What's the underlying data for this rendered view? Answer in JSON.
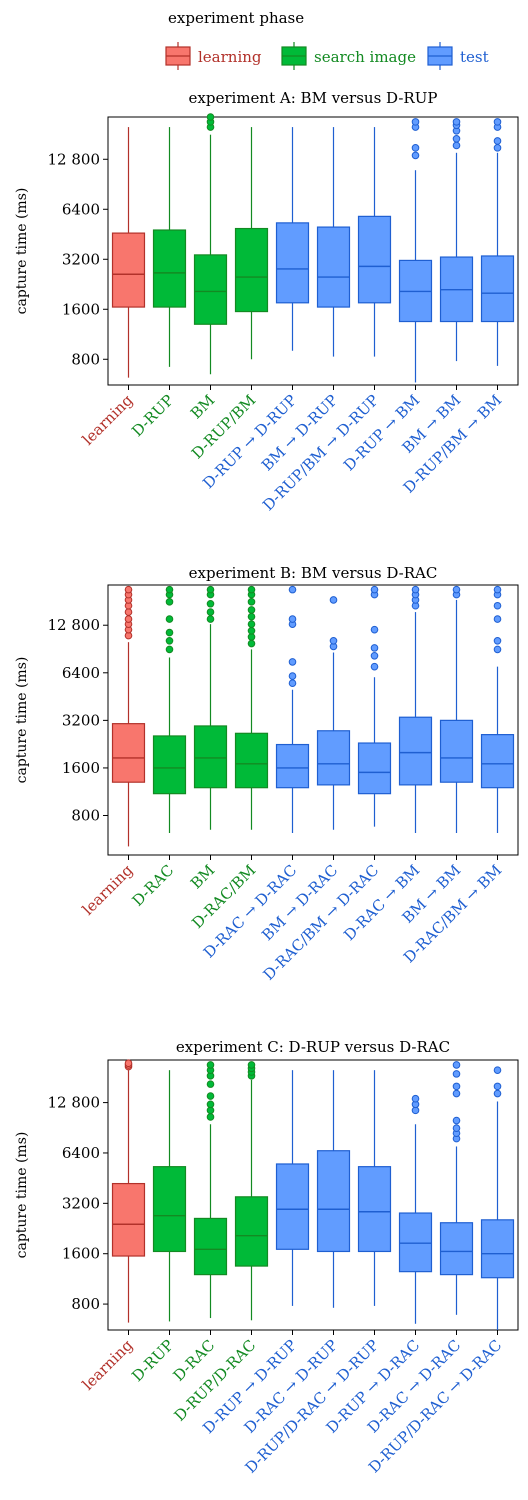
{
  "legend": {
    "title": "experiment phase",
    "items": [
      {
        "label": "learning",
        "fill": "#f8766d",
        "stroke": "#b2312a",
        "text_color": "#b2312a"
      },
      {
        "label": "search image",
        "fill": "#00ba38",
        "stroke": "#138a22",
        "text_color": "#138a22"
      },
      {
        "label": "test",
        "fill": "#619cff",
        "stroke": "#1f5fd1",
        "text_color": "#1f5fd1"
      }
    ]
  },
  "chart_data": [
    {
      "type": "box",
      "title": "experiment A: BM versus D-RUP",
      "ylabel": "capture time (ms)",
      "scale": "log2",
      "ylim": [
        560,
        23000
      ],
      "yticks": [
        800,
        1600,
        3200,
        6400,
        12800
      ],
      "ytick_labels": [
        "800",
        "1600",
        "3200",
        "6400",
        "12 800"
      ],
      "grid": false,
      "boxes": [
        {
          "label": "learning",
          "phase": "learning",
          "whisker_low": 620,
          "q1": 1650,
          "median": 2600,
          "q3": 4600,
          "whisker_high": 20000,
          "outliers": []
        },
        {
          "label": "D-RUP",
          "phase": "search image",
          "whisker_low": 720,
          "q1": 1650,
          "median": 2650,
          "q3": 4800,
          "whisker_high": 20000,
          "outliers": []
        },
        {
          "label": "BM",
          "phase": "search image",
          "whisker_low": 650,
          "q1": 1300,
          "median": 2050,
          "q3": 3400,
          "whisker_high": 18000,
          "outliers": [
            20000,
            21500,
            23000
          ]
        },
        {
          "label": "D-RUP/BM",
          "phase": "search image",
          "whisker_low": 800,
          "q1": 1550,
          "median": 2500,
          "q3": 4900,
          "whisker_high": 20000,
          "outliers": []
        },
        {
          "label": "D-RUP → D-RUP",
          "phase": "test",
          "whisker_low": 900,
          "q1": 1750,
          "median": 2800,
          "q3": 5300,
          "whisker_high": 20000,
          "outliers": []
        },
        {
          "label": "BM → D-RUP",
          "phase": "test",
          "whisker_low": 830,
          "q1": 1650,
          "median": 2500,
          "q3": 5000,
          "whisker_high": 20000,
          "outliers": []
        },
        {
          "label": "D-RUP/BM → D-RUP",
          "phase": "test",
          "whisker_low": 830,
          "q1": 1750,
          "median": 2900,
          "q3": 5800,
          "whisker_high": 20000,
          "outliers": []
        },
        {
          "label": "D-RUP → BM",
          "phase": "test",
          "whisker_low": 580,
          "q1": 1350,
          "median": 2050,
          "q3": 3150,
          "whisker_high": 11000,
          "outliers": [
            13500,
            15000,
            20000,
            21500
          ]
        },
        {
          "label": "BM → BM",
          "phase": "test",
          "whisker_low": 780,
          "q1": 1350,
          "median": 2100,
          "q3": 3300,
          "whisker_high": 14000,
          "outliers": [
            15500,
            17000,
            19000,
            20500,
            21500
          ]
        },
        {
          "label": "D-RUP/BM → BM",
          "phase": "test",
          "whisker_low": 730,
          "q1": 1350,
          "median": 2000,
          "q3": 3350,
          "whisker_high": 14000,
          "outliers": [
            15000,
            16500,
            20000,
            21500
          ]
        }
      ]
    },
    {
      "type": "box",
      "title": "experiment B: BM versus D-RAC",
      "ylabel": "capture time (ms)",
      "scale": "log2",
      "ylim": [
        450,
        23000
      ],
      "yticks": [
        800,
        1600,
        3200,
        6400,
        12800
      ],
      "ytick_labels": [
        "800",
        "1600",
        "3200",
        "6400",
        "12 800"
      ],
      "grid": false,
      "boxes": [
        {
          "label": "learning",
          "phase": "learning",
          "whisker_low": 510,
          "q1": 1300,
          "median": 1850,
          "q3": 3050,
          "whisker_high": 10000,
          "outliers": [
            11000,
            12000,
            13000,
            14000,
            15500,
            17000,
            18500,
            20000,
            21500
          ]
        },
        {
          "label": "D-RAC",
          "phase": "search image",
          "whisker_low": 620,
          "q1": 1100,
          "median": 1600,
          "q3": 2550,
          "whisker_high": 8000,
          "outliers": [
            9000,
            10200,
            11500,
            14000,
            18000,
            20000,
            21500
          ]
        },
        {
          "label": "BM",
          "phase": "search image",
          "whisker_low": 650,
          "q1": 1200,
          "median": 1850,
          "q3": 2950,
          "whisker_high": 13000,
          "outliers": [
            14000,
            15500,
            17500,
            20000,
            21500
          ]
        },
        {
          "label": "D-RAC/BM",
          "phase": "search image",
          "whisker_low": 650,
          "q1": 1200,
          "median": 1700,
          "q3": 2650,
          "whisker_high": 9000,
          "outliers": [
            9800,
            10800,
            11800,
            13000,
            14500,
            16000,
            18000,
            20000,
            21500
          ]
        },
        {
          "label": "D-RAC → D-RAC",
          "phase": "test",
          "whisker_low": 620,
          "q1": 1200,
          "median": 1600,
          "q3": 2250,
          "whisker_high": 5000,
          "outliers": [
            5500,
            6100,
            7500,
            13000,
            14000,
            21500
          ]
        },
        {
          "label": "BM → D-RAC",
          "phase": "test",
          "whisker_low": 650,
          "q1": 1250,
          "median": 1700,
          "q3": 2750,
          "whisker_high": 8600,
          "outliers": [
            9400,
            10200,
            18500
          ]
        },
        {
          "label": "D-RAC/BM → D-RAC",
          "phase": "test",
          "whisker_low": 680,
          "q1": 1100,
          "median": 1500,
          "q3": 2300,
          "whisker_high": 6000,
          "outliers": [
            7000,
            8200,
            9200,
            12000,
            20000,
            21500
          ]
        },
        {
          "label": "D-RAC → BM",
          "phase": "test",
          "whisker_low": 620,
          "q1": 1250,
          "median": 2000,
          "q3": 3350,
          "whisker_high": 15500,
          "outliers": [
            17000,
            18500,
            20000,
            21500
          ]
        },
        {
          "label": "BM → BM",
          "phase": "test",
          "whisker_low": 620,
          "q1": 1300,
          "median": 1850,
          "q3": 3200,
          "whisker_high": 18500,
          "outliers": [
            20000,
            21500
          ]
        },
        {
          "label": "D-RAC/BM → BM",
          "phase": "test",
          "whisker_low": 620,
          "q1": 1200,
          "median": 1700,
          "q3": 2600,
          "whisker_high": 7000,
          "outliers": [
            9000,
            10200,
            14000,
            17000,
            20000,
            21500
          ]
        }
      ]
    },
    {
      "type": "box",
      "title": "experiment C: D-RUP versus D-RAC",
      "ylabel": "capture time (ms)",
      "scale": "log2",
      "ylim": [
        560,
        23000
      ],
      "yticks": [
        800,
        1600,
        3200,
        6400,
        12800
      ],
      "ytick_labels": [
        "800",
        "1600",
        "3200",
        "6400",
        "12 800"
      ],
      "grid": false,
      "boxes": [
        {
          "label": "learning",
          "phase": "learning",
          "whisker_low": 620,
          "q1": 1550,
          "median": 2400,
          "q3": 4200,
          "whisker_high": 20000,
          "outliers": [
            21000,
            21500,
            22000
          ]
        },
        {
          "label": "D-RUP",
          "phase": "search image",
          "whisker_low": 630,
          "q1": 1650,
          "median": 2700,
          "q3": 5300,
          "whisker_high": 20000,
          "outliers": []
        },
        {
          "label": "D-RAC",
          "phase": "search image",
          "whisker_low": 660,
          "q1": 1200,
          "median": 1700,
          "q3": 2600,
          "whisker_high": 9500,
          "outliers": [
            10500,
            11500,
            12500,
            14000,
            16500,
            18500,
            20000,
            21500
          ]
        },
        {
          "label": "D-RUP/D-RAC",
          "phase": "search image",
          "whisker_low": 640,
          "q1": 1350,
          "median": 2050,
          "q3": 3500,
          "whisker_high": 17500,
          "outliers": [
            18500,
            19500,
            20500,
            21500
          ]
        },
        {
          "label": "D-RUP → D-RUP",
          "phase": "test",
          "whisker_low": 780,
          "q1": 1700,
          "median": 2950,
          "q3": 5500,
          "whisker_high": 20000,
          "outliers": []
        },
        {
          "label": "D-RAC → D-RUP",
          "phase": "test",
          "whisker_low": 760,
          "q1": 1650,
          "median": 2950,
          "q3": 6600,
          "whisker_high": 20000,
          "outliers": []
        },
        {
          "label": "D-RUP/D-RAC → D-RUP",
          "phase": "test",
          "whisker_low": 780,
          "q1": 1650,
          "median": 2850,
          "q3": 5300,
          "whisker_high": 20000,
          "outliers": []
        },
        {
          "label": "D-RUP → D-RAC",
          "phase": "test",
          "whisker_low": 610,
          "q1": 1250,
          "median": 1850,
          "q3": 2800,
          "whisker_high": 9500,
          "outliers": [
            11500,
            12500,
            13500
          ]
        },
        {
          "label": "D-RAC → D-RAC",
          "phase": "test",
          "whisker_low": 690,
          "q1": 1200,
          "median": 1650,
          "q3": 2450,
          "whisker_high": 7000,
          "outliers": [
            7800,
            8400,
            9000,
            10000,
            14500,
            16000,
            19000,
            21500
          ]
        },
        {
          "label": "D-RUP/D-RAC → D-RAC",
          "phase": "test",
          "whisker_low": 560,
          "q1": 1150,
          "median": 1600,
          "q3": 2550,
          "whisker_high": 13000,
          "outliers": [
            14500,
            16000,
            20000
          ]
        }
      ]
    }
  ]
}
